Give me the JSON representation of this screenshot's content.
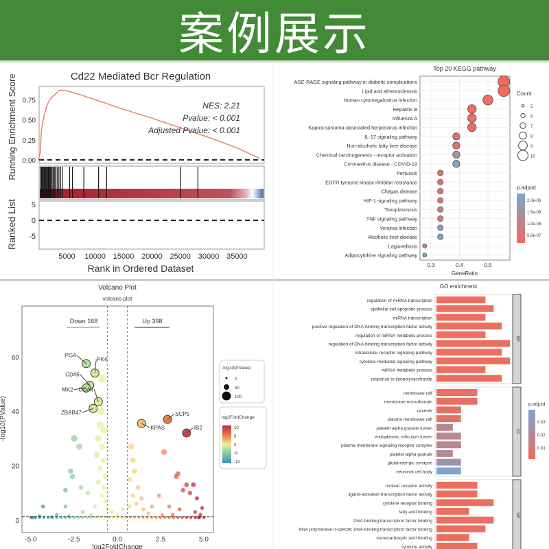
{
  "banner": {
    "title": "案例展示",
    "color": "#428a36"
  },
  "chart_data": [
    {
      "type": "line",
      "title": "Cd22 Mediated Bcr Regulation",
      "xlabel": "Rank in Ordered Dataset",
      "ylabel": "Running Enrichment Score",
      "ylabel_bottom": "Ranked List",
      "xlim": [
        0,
        39000
      ],
      "ylim": [
        0,
        0.9
      ],
      "xticks": [
        "5000",
        "10000",
        "15000",
        "20000",
        "25000",
        "30000",
        "35000"
      ],
      "yticks": [
        "0.00",
        "0.25",
        "0.50",
        "0.75"
      ],
      "ranked_yticks": [
        "5",
        "0",
        "-5"
      ],
      "annotations": [
        "NES: 2.21",
        "Pvalue: < 0.001",
        "Adjusted Pvalue: < 0.001"
      ],
      "x": [
        0,
        300,
        500,
        800,
        1000,
        1500,
        2000,
        2500,
        3000,
        3500,
        4000,
        5000,
        7000,
        10000,
        15000,
        20000,
        25000,
        30000,
        35000,
        39000
      ],
      "y": [
        0,
        0.08,
        0.35,
        0.48,
        0.55,
        0.68,
        0.75,
        0.79,
        0.82,
        0.86,
        0.87,
        0.86,
        0.82,
        0.75,
        0.63,
        0.52,
        0.4,
        0.28,
        0.15,
        0.02
      ],
      "hits": [
        400,
        550,
        700,
        850,
        1000,
        1150,
        1300,
        1450,
        1600,
        1750,
        1900,
        2050,
        2200,
        2400,
        2600,
        2800,
        3000,
        3300,
        3600,
        3900,
        4200,
        5500,
        6000,
        8000,
        10600,
        12000,
        25000,
        28100
      ],
      "line_color": "#e8836f"
    },
    {
      "type": "scatter",
      "title": "Top 20 KEGG pathway",
      "xlabel": "GeneRatio",
      "xticks": [
        0.3,
        0.4,
        0.5
      ],
      "xlim": [
        0.265,
        0.57
      ],
      "categories": [
        "AGE-RAGE signaling pathway in diabetic complications",
        "Lipid and atherosclerosis",
        "Human cytomegalovirus infection",
        "Hepatitis B",
        "Influenza A",
        "Kaposi sarcoma-associated herpesvirus infection",
        "IL-17 signaling pathway",
        "Non-alcoholic fatty liver disease",
        "Chemical carcinogenesis - receptor activation",
        "Coronavirus disease - COVID-19",
        "Pertussis",
        "EGFR tyrosine kinase inhibitor resistance",
        "Chagas disease",
        "HIF-1 signaling pathway",
        "Toxoplasmosis",
        "TNF signaling pathway",
        "Yersinia infection",
        "Alcoholic liver disease",
        "Legionellosis",
        "Adipocytokine signaling pathway"
      ],
      "gene_ratio": [
        0.556,
        0.556,
        0.5,
        0.444,
        0.444,
        0.444,
        0.389,
        0.389,
        0.389,
        0.389,
        0.333,
        0.333,
        0.333,
        0.333,
        0.333,
        0.333,
        0.333,
        0.333,
        0.278,
        0.278
      ],
      "count": [
        10,
        10,
        9,
        8,
        8,
        8,
        7,
        7,
        7,
        7,
        6,
        6,
        6,
        6,
        6,
        6,
        6,
        6,
        5,
        5
      ],
      "p_adjust": [
        2e-08,
        3e-08,
        1e-07,
        1.5e-07,
        1.5e-07,
        1.6e-07,
        2e-07,
        2.5e-07,
        1.3e-06,
        2.1e-06,
        3e-07,
        3e-07,
        3.5e-07,
        4e-07,
        8e-07,
        7e-07,
        1.8e-06,
        2.1e-06,
        4e-07,
        2.1e-06
      ],
      "legend_size": {
        "title": "Count",
        "labels": [
          "5",
          "6",
          "7",
          "8",
          "9",
          "10"
        ]
      },
      "legend_color": {
        "title": "p.adjust",
        "labels": [
          "2.0e-06",
          "1.5e-06",
          "1.0e-06",
          "5.0e-07"
        ],
        "low": "#ee6c5c",
        "high": "#7aa6cf"
      }
    },
    {
      "type": "scatter",
      "title": "Volcano Plot",
      "subtitle": "volcano plot",
      "xlabel": "log2FoldChange",
      "ylabel": "-log10(PValue)",
      "xlim": [
        -5.5,
        5.5
      ],
      "ylim": [
        -4,
        78
      ],
      "xticks": [
        "-5.0",
        "-2.5",
        "0.0",
        "2.5",
        "5.0"
      ],
      "yticks": [
        "0",
        "20",
        "40",
        "60"
      ],
      "thresholds": {
        "fc": 0.58,
        "p": 1.3
      },
      "down_label": "Down 168",
      "up_label": "Up 398",
      "labeled_points": [
        {
          "gene": "PG4",
          "x": -1.8,
          "y": 57.5
        },
        {
          "gene": "PK4",
          "x": -1.3,
          "y": 54
        },
        {
          "gene": "CD45",
          "x": -1.6,
          "y": 49.5
        },
        {
          "gene": "MK2",
          "x": -1.8,
          "y": 48.5
        },
        {
          "gene": "CQA4",
          "x": -1.1,
          "y": 43.5
        },
        {
          "gene": "ZBAB47",
          "x": -1.4,
          "y": 41
        },
        {
          "gene": "KPAS",
          "x": 1.4,
          "y": 35.5
        },
        {
          "gene": "SCP5",
          "x": 2.9,
          "y": 37
        },
        {
          "gene": "IB2",
          "x": 4.0,
          "y": 32
        }
      ],
      "points": [
        [
          -0.9,
          52
        ],
        [
          -0.95,
          40
        ],
        [
          -1.0,
          35
        ],
        [
          -0.8,
          33
        ],
        [
          -1.1,
          30
        ],
        [
          -0.9,
          27
        ],
        [
          -1.2,
          24
        ],
        [
          -0.8,
          22
        ],
        [
          -1.0,
          19
        ],
        [
          -0.7,
          16
        ],
        [
          -1.1,
          14
        ],
        [
          -0.8,
          12
        ],
        [
          -0.9,
          9
        ],
        [
          -0.7,
          7
        ],
        [
          -1.3,
          5
        ],
        [
          -0.6,
          4
        ],
        [
          -2.5,
          30
        ],
        [
          -2.2,
          27
        ],
        [
          -2.7,
          18
        ],
        [
          -2.6,
          16
        ],
        [
          -2.1,
          12
        ],
        [
          -3.0,
          11
        ],
        [
          -1.7,
          10
        ],
        [
          -4.3,
          5
        ],
        [
          -3.0,
          5
        ],
        [
          -2.0,
          3
        ],
        [
          -3.5,
          2
        ],
        [
          -4.5,
          1.5
        ],
        [
          -4.9,
          1
        ],
        [
          -3.8,
          1.2
        ],
        [
          -2.8,
          1.5
        ],
        [
          -1.5,
          2
        ],
        [
          -0.3,
          3
        ],
        [
          0.0,
          2
        ],
        [
          0.3,
          4
        ],
        [
          0.8,
          27
        ],
        [
          0.9,
          22
        ],
        [
          1.0,
          18
        ],
        [
          0.7,
          15
        ],
        [
          1.2,
          12
        ],
        [
          0.9,
          9
        ],
        [
          1.4,
          8
        ],
        [
          1.1,
          6
        ],
        [
          0.7,
          5
        ],
        [
          2.7,
          25
        ],
        [
          3.5,
          17
        ],
        [
          3.4,
          16
        ],
        [
          4.0,
          13
        ],
        [
          3.8,
          11
        ],
        [
          4.4,
          13
        ],
        [
          4.2,
          10
        ],
        [
          4.6,
          8
        ],
        [
          2.4,
          9
        ],
        [
          3.0,
          5
        ],
        [
          3.6,
          4
        ],
        [
          2.0,
          5
        ],
        [
          1.5,
          4
        ],
        [
          4.8,
          2
        ],
        [
          4.9,
          4.5
        ],
        [
          4.5,
          3
        ],
        [
          3.2,
          2
        ],
        [
          2.6,
          2
        ],
        [
          1.8,
          2.5
        ],
        [
          4.7,
          1
        ]
      ],
      "legend_size": {
        "title": "-log10(PValue)",
        "labels": [
          "0",
          "50",
          "100"
        ]
      },
      "legend_color": {
        "title": "log2FoldChange",
        "labels": [
          "10",
          "5",
          "0",
          "-5",
          "-10"
        ]
      }
    },
    {
      "type": "bar",
      "title": "GO enrichment",
      "orientation": "horizontal",
      "groups": [
        {
          "name": "BP",
          "categories": [
            "regulation of miRNA transcription",
            "epithelial cell apoptotic process",
            "miRNA transcription",
            "positive regulation of DNA-binding transcription factor activity",
            "regulation of miRNA metabolic process",
            "regulation of DNA-binding transcription factor activity",
            "intracellular receptor signaling pathway",
            "cytokine-mediated signaling pathway",
            "miRNA metabolic process",
            "response to lipopolysaccharide"
          ],
          "values": [
            6,
            7,
            6,
            8,
            6,
            9,
            8,
            9,
            6,
            8
          ],
          "p_adjust": [
            0.001,
            0.001,
            0.001,
            0.001,
            0.001,
            0.001,
            0.001,
            0.001,
            0.001,
            0.001
          ]
        },
        {
          "name": "CC",
          "categories": [
            "membrane raft",
            "membrane microdomain",
            "caveola",
            "plasma membrane raft",
            "platelet alpha granule lumen",
            "endoplasmic reticulum lumen",
            "plasma membrane signaling receptor complex",
            "platelet alpha granule",
            "glutamatergic synapse",
            "neuronal cell body"
          ],
          "values": [
            5,
            5,
            3,
            3,
            2,
            3,
            3,
            2,
            3,
            3
          ],
          "p_adjust": [
            0.002,
            0.002,
            0.003,
            0.003,
            0.015,
            0.016,
            0.016,
            0.017,
            0.025,
            0.035
          ]
        },
        {
          "name": "MF",
          "categories": [
            "nuclear receptor activity",
            "ligand-activated transcription factor activity",
            "cytokine receptor binding",
            "fatty acid binding",
            "DNA-binding transcription factor binding",
            "RNA polymerase II-specific DNA-binding transcription factor binding",
            "monocarboxylic acid binding",
            "cytokine activity"
          ],
          "values": [
            5,
            5,
            7,
            4,
            7,
            6,
            4,
            5
          ],
          "p_adjust": [
            0.001,
            0.001,
            0.001,
            0.001,
            0.001,
            0.001,
            0.001,
            0.001
          ]
        }
      ],
      "legend_color": {
        "title": "p.adjust",
        "labels": [
          "0.03",
          "0.02",
          "0.01"
        ],
        "low": "#ee6c5c",
        "high": "#7aa6cf"
      }
    }
  ]
}
